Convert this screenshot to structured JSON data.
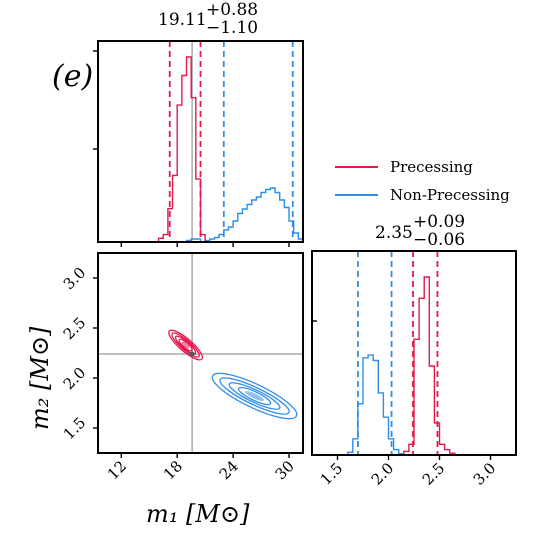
{
  "panel_label": "(e)",
  "colors": {
    "precessing": "#e8174c",
    "non_precessing": "#2f8ee8",
    "truth": "#aaaaaa"
  },
  "legend": [
    "Precessing",
    "Non-Precessing"
  ],
  "chart_data": [
    {
      "type": "histogram",
      "panel": "m1-marginal",
      "title_value": "19.11",
      "title_plus": "+0.88",
      "title_minus": "−1.10",
      "xlim": [
        9.5,
        31.5
      ],
      "truth": 19.6,
      "quantile_lines": {
        "precessing": [
          17.2,
          20.5
        ],
        "non_precessing": [
          23.0,
          30.4
        ]
      },
      "series": [
        {
          "name": "Precessing",
          "bins": [
            16.0,
            16.5,
            17.0,
            17.5,
            18.0,
            18.5,
            19.0,
            19.5,
            20.0,
            20.5,
            21.0
          ],
          "values": [
            0.02,
            0.04,
            0.18,
            0.36,
            0.74,
            0.9,
            1.0,
            0.78,
            0.34,
            0.04,
            0.0
          ]
        },
        {
          "name": "Non-Precessing",
          "bins": [
            19.0,
            19.5,
            20.0,
            20.5,
            21.0,
            21.5,
            22.0,
            22.5,
            23.0,
            23.5,
            24.0,
            24.5,
            25.0,
            25.5,
            26.0,
            26.5,
            27.0,
            27.5,
            28.0,
            28.5,
            29.0,
            29.5,
            30.0,
            30.5,
            31.0
          ],
          "values": [
            0.01,
            0.02,
            0.02,
            0.0,
            0.01,
            0.02,
            0.03,
            0.05,
            0.08,
            0.1,
            0.14,
            0.19,
            0.22,
            0.25,
            0.28,
            0.3,
            0.33,
            0.35,
            0.36,
            0.33,
            0.28,
            0.23,
            0.14,
            0.06,
            0.02
          ]
        }
      ]
    },
    {
      "type": "contour",
      "panel": "m1-m2-joint",
      "xlabel": "m₁ [M⊙]",
      "ylabel": "m₂ [M⊙]",
      "xlim": [
        9.5,
        31.5
      ],
      "ylim": [
        1.25,
        3.25
      ],
      "xticks": [
        "12",
        "18",
        "24",
        "30"
      ],
      "yticks": [
        "1.5",
        "2.0",
        "2.5",
        "3.0"
      ],
      "truth": {
        "x": 19.6,
        "y": 2.24
      },
      "series": [
        {
          "name": "Precessing",
          "center": [
            18.9,
            2.33
          ],
          "extent_x": [
            17.0,
            20.5
          ],
          "extent_y": [
            2.2,
            2.48
          ]
        },
        {
          "name": "Non-Precessing",
          "center": [
            26.3,
            1.82
          ],
          "extent_x": [
            21.8,
            30.8
          ],
          "extent_y": [
            1.65,
            2.05
          ]
        }
      ]
    },
    {
      "type": "histogram",
      "panel": "m2-marginal",
      "title_value": "2.35",
      "title_plus": "+0.09",
      "title_minus": "−0.06",
      "xlim": [
        1.25,
        3.25
      ],
      "xticks": [
        "1.5",
        "2.0",
        "2.5",
        "3.0"
      ],
      "quantile_lines": {
        "precessing": [
          2.24,
          2.48
        ],
        "non_precessing": [
          1.7,
          2.03
        ]
      },
      "series": [
        {
          "name": "Precessing",
          "bins": [
            2.15,
            2.2,
            2.25,
            2.3,
            2.35,
            2.4,
            2.45,
            2.5,
            2.55,
            2.6
          ],
          "values": [
            0.02,
            0.06,
            0.65,
            0.88,
            1.0,
            0.5,
            0.18,
            0.06,
            0.03,
            0.01
          ]
        },
        {
          "name": "Non-Precessing",
          "bins": [
            1.6,
            1.65,
            1.7,
            1.75,
            1.8,
            1.85,
            1.9,
            1.95,
            2.0,
            2.05,
            2.1
          ],
          "values": [
            0.02,
            0.12,
            0.38,
            0.72,
            0.74,
            0.7,
            0.46,
            0.28,
            0.12,
            0.04,
            0.01
          ]
        }
      ]
    }
  ]
}
